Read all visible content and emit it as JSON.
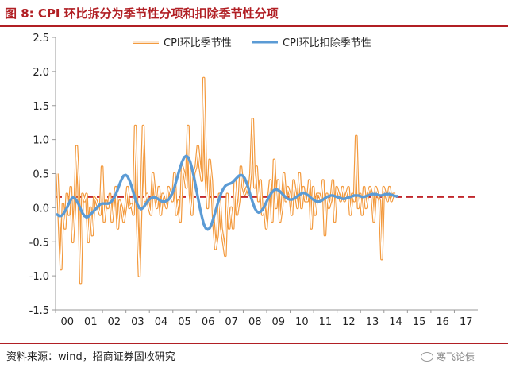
{
  "title": "图 8:  CPI 环比拆分为季节性分项和扣除季节性分项",
  "source": "资料来源：wind，招商证券固收研究",
  "watermark": "寒飞论债",
  "watermark_icon": "wechat-icon",
  "colors": {
    "title": "#b11f24",
    "seasonal": "#f39a3e",
    "adjusted": "#5b9bd5",
    "reference": "#c0282d"
  },
  "chart_data": {
    "type": "line",
    "ylim": [
      -1.5,
      2.5
    ],
    "yticks": [
      "2.5",
      "2.0",
      "1.5",
      "1.0",
      "0.5",
      "0.0",
      "-0.5",
      "-1.0",
      "-1.5"
    ],
    "ytick_values": [
      2.5,
      2.0,
      1.5,
      1.0,
      0.5,
      0.0,
      -0.5,
      -1.0,
      -1.5
    ],
    "xticks": [
      "00",
      "01",
      "02",
      "03",
      "04",
      "05",
      "06",
      "07",
      "08",
      "09",
      "10",
      "11",
      "12",
      "13",
      "14",
      "15",
      "16",
      "17"
    ],
    "x_start_year": 2000,
    "grid": false,
    "legend_position": "top-center",
    "reference_line": {
      "value": 0.16,
      "style": "dashed"
    },
    "series": [
      {
        "name": "CPI环比季节性",
        "style": "double-line",
        "values": [
          0.5,
          -0.2,
          -0.9,
          0.05,
          -0.3,
          0.2,
          -0.1,
          0.3,
          -0.5,
          0.0,
          0.9,
          0.3,
          -1.1,
          0.2,
          0.1,
          0.2,
          -0.5,
          0.0,
          -0.4,
          0.15,
          0.1,
          0.0,
          -0.1,
          0.6,
          -0.2,
          0.1,
          0.0,
          0.2,
          -0.2,
          0.1,
          0.3,
          -0.3,
          0.1,
          0.0,
          -0.2,
          0.0,
          0.3,
          0.0,
          0.05,
          -0.1,
          1.2,
          -0.2,
          -1.0,
          0.1,
          1.2,
          0.1,
          0.2,
          0.0,
          -0.1,
          0.5,
          0.2,
          0.0,
          0.3,
          -0.1,
          0.2,
          0.1,
          0.0,
          0.3,
          0.2,
          0.1,
          0.5,
          -0.1,
          0.1,
          -0.2,
          0.6,
          0.5,
          0.3,
          1.2,
          0.2,
          -0.1,
          0.5,
          0.6,
          0.9,
          0.6,
          0.4,
          1.9,
          0.5,
          0.0,
          0.7,
          0.4,
          -0.2,
          -0.6,
          -0.4,
          0.2,
          -0.3,
          -0.5,
          -0.7,
          0.2,
          -0.3,
          0.0,
          -0.3,
          0.4,
          -0.1,
          0.1,
          0.6,
          0.3,
          0.2,
          0.3,
          0.2,
          0.5,
          1.3,
          0.3,
          0.6,
          0.1,
          0.4,
          -0.1,
          0.0,
          -0.3,
          0.1,
          0.4,
          -0.2,
          0.7,
          0.0,
          0.4,
          -0.2,
          0.0,
          0.5,
          0.1,
          0.3,
          0.2,
          -0.1,
          0.4,
          0.2,
          0.0,
          0.5,
          0.0,
          0.3,
          0.1,
          0.1,
          0.4,
          -0.3,
          0.3,
          -0.1,
          0.2,
          0.2,
          0.1,
          0.4,
          -0.4,
          0.2,
          0.0,
          0.1,
          0.4,
          -0.2,
          0.3,
          0.2,
          0.1,
          0.3,
          0.1,
          0.2,
          0.3,
          -0.1,
          0.2,
          0.1,
          1.05,
          0.0,
          0.2,
          -0.1,
          0.3,
          0.0,
          0.2,
          0.3,
          0.2,
          -0.2,
          0.3,
          0.2,
          0.1,
          -0.75,
          0.3,
          0.2,
          0.1,
          0.3,
          0.1,
          0.2,
          0.2
        ]
      },
      {
        "name": "CPI环比扣除季节性",
        "style": "smooth",
        "values": [
          -0.1,
          -0.12,
          -0.12,
          -0.1,
          -0.05,
          0.0,
          0.06,
          0.12,
          0.15,
          0.14,
          0.1,
          0.05,
          -0.02,
          -0.08,
          -0.12,
          -0.14,
          -0.13,
          -0.1,
          -0.07,
          -0.04,
          -0.01,
          0.02,
          0.05,
          0.06,
          0.06,
          0.06,
          0.06,
          0.07,
          0.1,
          0.14,
          0.2,
          0.27,
          0.35,
          0.42,
          0.47,
          0.48,
          0.46,
          0.4,
          0.32,
          0.22,
          0.13,
          0.05,
          0.0,
          -0.02,
          0.0,
          0.04,
          0.08,
          0.12,
          0.14,
          0.15,
          0.15,
          0.14,
          0.12,
          0.1,
          0.09,
          0.09,
          0.1,
          0.12,
          0.16,
          0.22,
          0.3,
          0.4,
          0.5,
          0.6,
          0.68,
          0.74,
          0.76,
          0.74,
          0.68,
          0.58,
          0.45,
          0.3,
          0.15,
          0.0,
          -0.13,
          -0.24,
          -0.3,
          -0.32,
          -0.3,
          -0.24,
          -0.15,
          -0.05,
          0.05,
          0.14,
          0.22,
          0.28,
          0.32,
          0.34,
          0.35,
          0.36,
          0.38,
          0.41,
          0.44,
          0.47,
          0.48,
          0.47,
          0.43,
          0.36,
          0.27,
          0.17,
          0.08,
          0.0,
          -0.05,
          -0.07,
          -0.06,
          -0.03,
          0.02,
          0.08,
          0.14,
          0.19,
          0.23,
          0.26,
          0.27,
          0.26,
          0.24,
          0.21,
          0.18,
          0.15,
          0.13,
          0.12,
          0.12,
          0.13,
          0.15,
          0.17,
          0.19,
          0.21,
          0.22,
          0.21,
          0.19,
          0.17,
          0.14,
          0.12,
          0.1,
          0.09,
          0.09,
          0.1,
          0.12,
          0.14,
          0.16,
          0.17,
          0.18,
          0.18,
          0.17,
          0.16,
          0.15,
          0.14,
          0.13,
          0.13,
          0.14,
          0.15,
          0.16,
          0.17,
          0.18,
          0.18,
          0.18,
          0.17,
          0.16,
          0.16,
          0.17,
          0.18,
          0.19,
          0.2,
          0.2,
          0.2,
          0.19,
          0.18,
          0.18,
          0.19,
          0.2,
          0.2,
          0.2,
          0.19,
          0.18,
          0.17,
          0.17
        ]
      }
    ]
  }
}
